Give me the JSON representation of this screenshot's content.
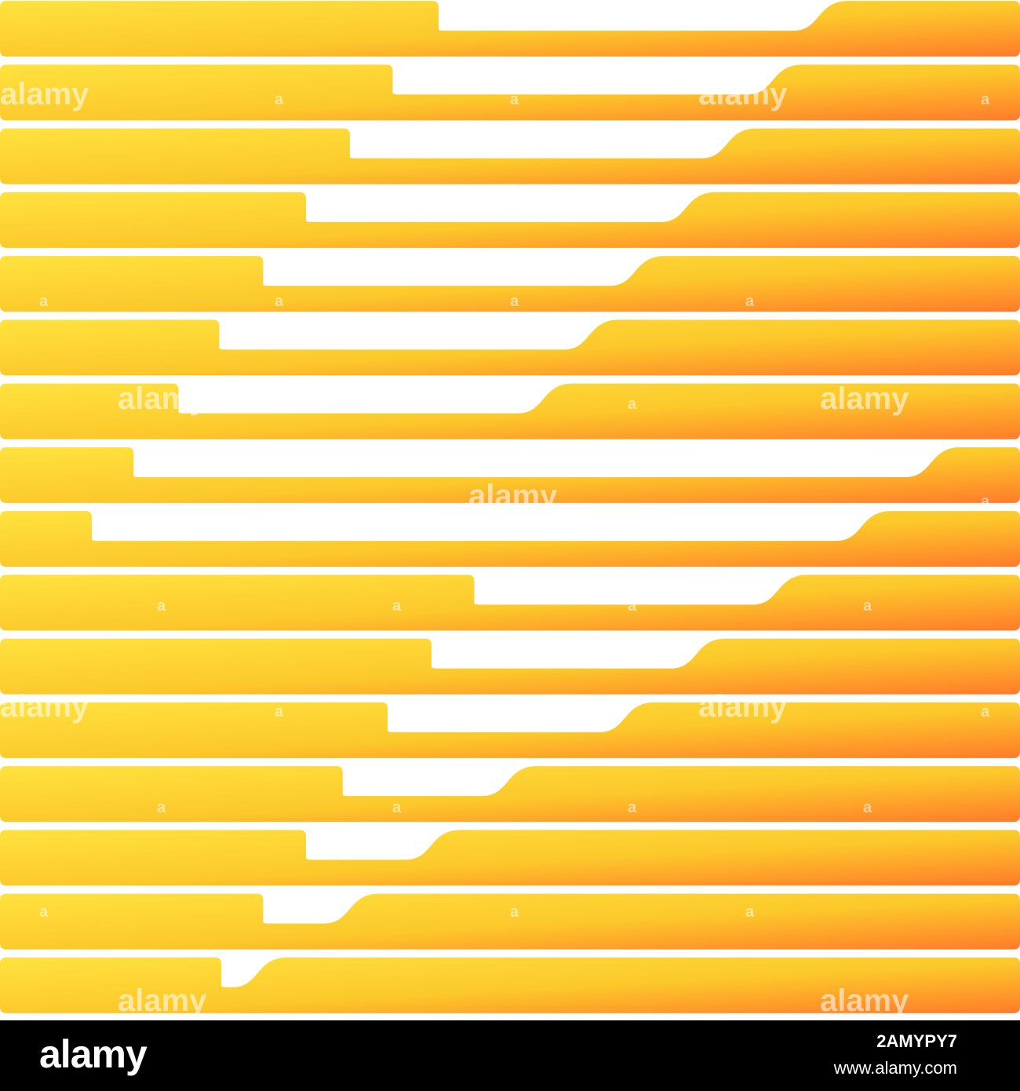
{
  "artwork": {
    "description_free": true,
    "gradient": {
      "start": "#FFE23F",
      "mid": "#FCC82A",
      "end": "#FF7B2A"
    },
    "background": "#FFFFFF",
    "bars": [
      {
        "notch_start": 0.43,
        "notch_end": 0.82
      },
      {
        "notch_start": 0.385,
        "notch_end": 0.775
      },
      {
        "notch_start": 0.343,
        "notch_end": 0.73
      },
      {
        "notch_start": 0.3,
        "notch_end": 0.69
      },
      {
        "notch_start": 0.258,
        "notch_end": 0.64
      },
      {
        "notch_start": 0.215,
        "notch_end": 0.595
      },
      {
        "notch_start": 0.175,
        "notch_end": 0.55
      },
      {
        "notch_start": 0.131,
        "notch_end": 0.93
      },
      {
        "notch_start": 0.09,
        "notch_end": 0.862
      },
      {
        "notch_start": 0.465,
        "notch_end": 0.78
      },
      {
        "notch_start": 0.423,
        "notch_end": 0.7
      },
      {
        "notch_start": 0.38,
        "notch_end": 0.63
      },
      {
        "notch_start": 0.336,
        "notch_end": 0.515
      },
      {
        "notch_start": 0.3,
        "notch_end": 0.44
      },
      {
        "notch_start": 0.258,
        "notch_end": 0.36
      },
      {
        "notch_start": 0.217,
        "notch_end": 0.27
      }
    ],
    "watermarks": [
      {
        "text": "alamy"
      },
      {
        "text": "a"
      },
      {
        "text": "a"
      },
      {
        "text": "alamy"
      },
      {
        "text": "a"
      },
      {
        "text": "a"
      },
      {
        "text": "a"
      },
      {
        "text": "a"
      },
      {
        "text": "a"
      },
      {
        "text": "alamy"
      },
      {
        "text": "a"
      },
      {
        "text": "alamy"
      },
      {
        "text": "alamy"
      },
      {
        "text": "a"
      },
      {
        "text": "a"
      },
      {
        "text": "a"
      },
      {
        "text": "a"
      },
      {
        "text": "a"
      },
      {
        "text": "alamy"
      },
      {
        "text": "a"
      },
      {
        "text": "alamy"
      },
      {
        "text": "a"
      },
      {
        "text": "a"
      },
      {
        "text": "a"
      },
      {
        "text": "a"
      },
      {
        "text": "a"
      },
      {
        "text": "a"
      },
      {
        "text": "a"
      },
      {
        "text": "a"
      },
      {
        "text": "a"
      },
      {
        "text": "alamy"
      },
      {
        "text": "alamy"
      }
    ]
  },
  "footer": {
    "brand": "alamy",
    "image_id": "2AMYPY7",
    "site": "www.alamy.com"
  }
}
